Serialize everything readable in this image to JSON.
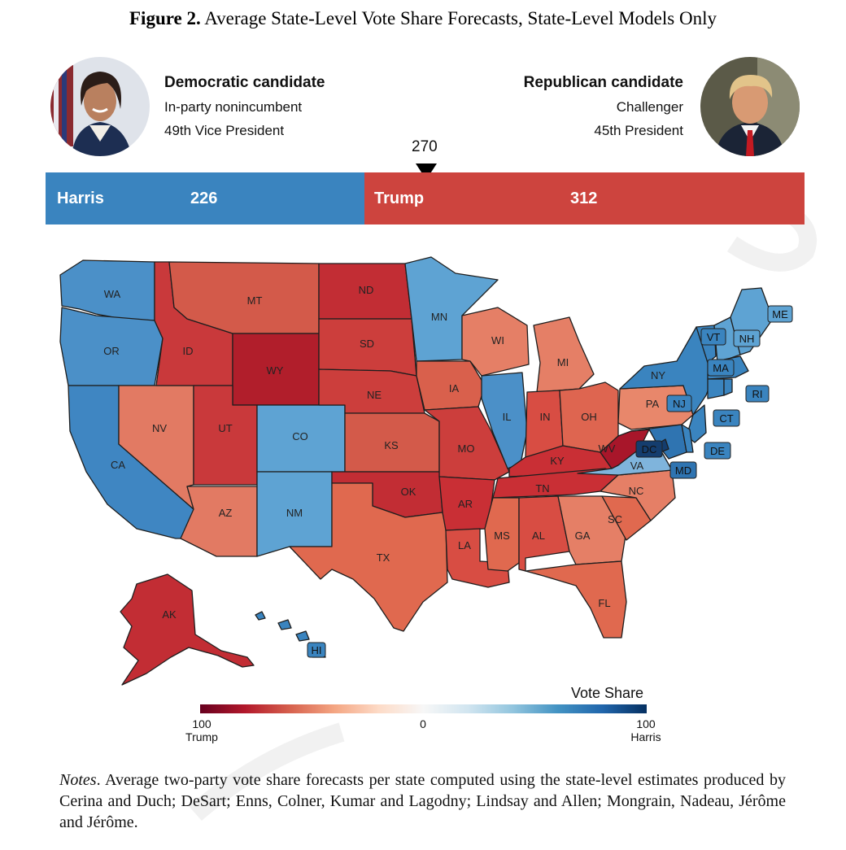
{
  "figure": {
    "label": "Figure 2.",
    "title": "Average State-Level Vote Share Forecasts, State-Level Models Only"
  },
  "democrat": {
    "heading": "Democratic candidate",
    "status": "In-party nonincumbent",
    "office": "49th Vice President",
    "name": "Harris",
    "electoral_votes": "226"
  },
  "republican": {
    "heading": "Republican candidate",
    "status": "Challenger",
    "office": "45th President",
    "name": "Trump",
    "electoral_votes": "312"
  },
  "threshold": "270",
  "legend": {
    "title": "Vote Share",
    "left_value": "100",
    "left_label": "Trump",
    "mid_value": "0",
    "right_value": "100",
    "right_label": "Harris"
  },
  "colors": {
    "harris_bar": "#3a84bf",
    "trump_bar": "#cd443e"
  },
  "states": [
    {
      "abbr": "WA",
      "winner": "Harris"
    },
    {
      "abbr": "OR",
      "winner": "Harris"
    },
    {
      "abbr": "CA",
      "winner": "Harris"
    },
    {
      "abbr": "NV",
      "winner": "Trump"
    },
    {
      "abbr": "ID",
      "winner": "Trump"
    },
    {
      "abbr": "MT",
      "winner": "Trump"
    },
    {
      "abbr": "WY",
      "winner": "Trump"
    },
    {
      "abbr": "UT",
      "winner": "Trump"
    },
    {
      "abbr": "AZ",
      "winner": "Trump"
    },
    {
      "abbr": "CO",
      "winner": "Harris"
    },
    {
      "abbr": "NM",
      "winner": "Harris"
    },
    {
      "abbr": "ND",
      "winner": "Trump"
    },
    {
      "abbr": "SD",
      "winner": "Trump"
    },
    {
      "abbr": "NE",
      "winner": "Trump"
    },
    {
      "abbr": "KS",
      "winner": "Trump"
    },
    {
      "abbr": "OK",
      "winner": "Trump"
    },
    {
      "abbr": "TX",
      "winner": "Trump"
    },
    {
      "abbr": "MN",
      "winner": "Harris"
    },
    {
      "abbr": "IA",
      "winner": "Trump"
    },
    {
      "abbr": "MO",
      "winner": "Trump"
    },
    {
      "abbr": "AR",
      "winner": "Trump"
    },
    {
      "abbr": "LA",
      "winner": "Trump"
    },
    {
      "abbr": "WI",
      "winner": "Trump"
    },
    {
      "abbr": "IL",
      "winner": "Harris"
    },
    {
      "abbr": "MI",
      "winner": "Trump"
    },
    {
      "abbr": "IN",
      "winner": "Trump"
    },
    {
      "abbr": "OH",
      "winner": "Trump"
    },
    {
      "abbr": "KY",
      "winner": "Trump"
    },
    {
      "abbr": "TN",
      "winner": "Trump"
    },
    {
      "abbr": "MS",
      "winner": "Trump"
    },
    {
      "abbr": "AL",
      "winner": "Trump"
    },
    {
      "abbr": "GA",
      "winner": "Trump"
    },
    {
      "abbr": "FL",
      "winner": "Trump"
    },
    {
      "abbr": "SC",
      "winner": "Trump"
    },
    {
      "abbr": "NC",
      "winner": "Trump"
    },
    {
      "abbr": "VA",
      "winner": "Harris"
    },
    {
      "abbr": "WV",
      "winner": "Trump"
    },
    {
      "abbr": "PA",
      "winner": "Trump"
    },
    {
      "abbr": "NY",
      "winner": "Harris"
    },
    {
      "abbr": "VT",
      "winner": "Harris"
    },
    {
      "abbr": "NH",
      "winner": "Harris"
    },
    {
      "abbr": "ME",
      "winner": "Harris"
    },
    {
      "abbr": "MA",
      "winner": "Harris"
    },
    {
      "abbr": "RI",
      "winner": "Harris"
    },
    {
      "abbr": "CT",
      "winner": "Harris"
    },
    {
      "abbr": "NJ",
      "winner": "Harris"
    },
    {
      "abbr": "DE",
      "winner": "Harris"
    },
    {
      "abbr": "MD",
      "winner": "Harris"
    },
    {
      "abbr": "DC",
      "winner": "Harris"
    },
    {
      "abbr": "AK",
      "winner": "Trump"
    },
    {
      "abbr": "HI",
      "winner": "Harris"
    }
  ],
  "notes": {
    "lead": "Notes",
    "text": ". Average two-party vote share forecasts per state computed using the state-level estimates produced by Cerina and Duch; DeSart; Enns, Colner, Kumar and Lagodny; Lindsay and Allen; Mongrain, Nadeau, Jérôme and Jérôme."
  }
}
